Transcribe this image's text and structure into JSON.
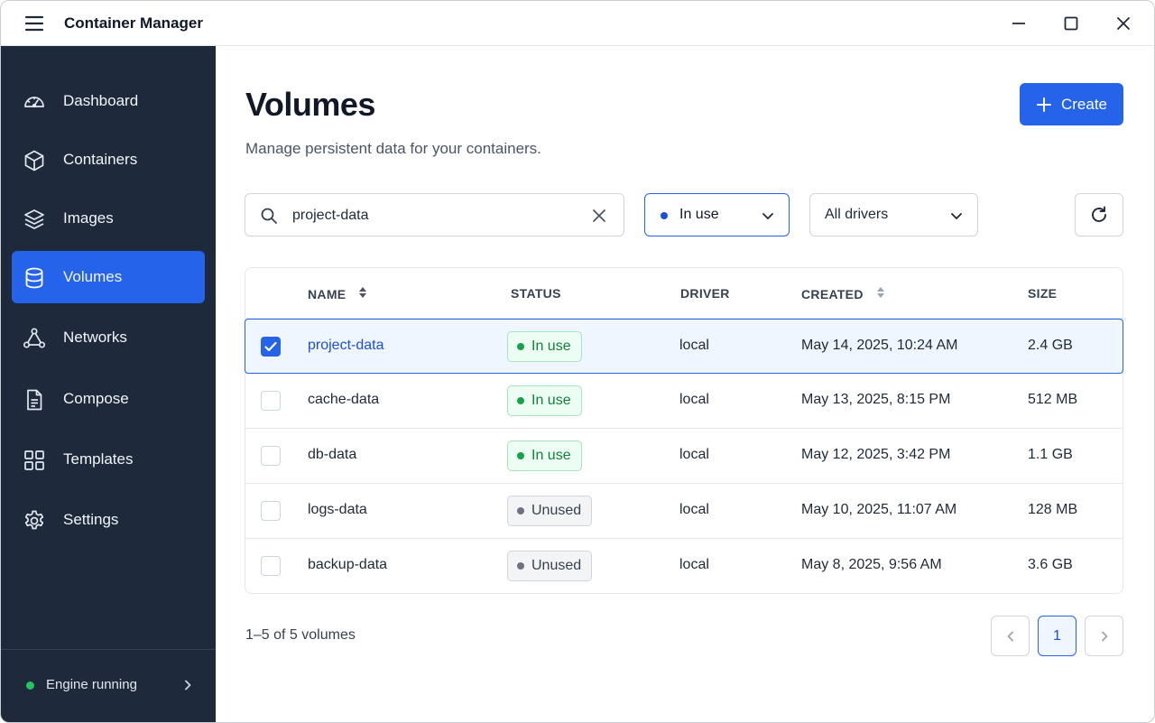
{
  "app": {
    "title": "Container Manager"
  },
  "sidebar": {
    "items": [
      {
        "label": "Dashboard",
        "icon": "dashboard-icon",
        "active": false
      },
      {
        "label": "Containers",
        "icon": "cube-icon",
        "active": false
      },
      {
        "label": "Images",
        "icon": "layers-icon",
        "active": false
      },
      {
        "label": "Volumes",
        "icon": "database-icon",
        "active": true
      },
      {
        "label": "Networks",
        "icon": "network-icon",
        "active": false
      },
      {
        "label": "Compose",
        "icon": "document-icon",
        "active": false
      },
      {
        "label": "Templates",
        "icon": "grid-icon",
        "active": false
      },
      {
        "label": "Settings",
        "icon": "gear-icon",
        "active": false
      }
    ],
    "engine_status": "Engine running",
    "engine_status_color": "#22c55e"
  },
  "page": {
    "title": "Volumes",
    "subtitle": "Manage persistent data for your containers.",
    "create_label": "Create"
  },
  "filters": {
    "search_value": "project-data",
    "status_value": "In use",
    "driver_value": "All drivers"
  },
  "table": {
    "headers": {
      "name": "NAME",
      "status": "STATUS",
      "driver": "DRIVER",
      "created": "CREATED",
      "size": "SIZE"
    },
    "rows": [
      {
        "name": "project-data",
        "status": "In use",
        "driver": "local",
        "created": "May 14, 2025, 10:24 AM",
        "size": "2.4 GB",
        "selected": true
      },
      {
        "name": "cache-data",
        "status": "In use",
        "driver": "local",
        "created": "May 13, 2025, 8:15 PM",
        "size": "512 MB",
        "selected": false
      },
      {
        "name": "db-data",
        "status": "In use",
        "driver": "local",
        "created": "May 12, 2025, 3:42 PM",
        "size": "1.1 GB",
        "selected": false
      },
      {
        "name": "logs-data",
        "status": "Unused",
        "driver": "local",
        "created": "May 10, 2025, 11:07 AM",
        "size": "128 MB",
        "selected": false
      },
      {
        "name": "backup-data",
        "status": "Unused",
        "driver": "local",
        "created": "May 8, 2025, 9:56 AM",
        "size": "3.6 GB",
        "selected": false
      }
    ]
  },
  "pagination": {
    "summary": "1–5 of 5 volumes",
    "current_page": "1"
  },
  "colors": {
    "accent": "#2563eb",
    "sidebar_bg": "#1e293b",
    "in_use": "#16a34a",
    "unused": "#6b7280"
  }
}
